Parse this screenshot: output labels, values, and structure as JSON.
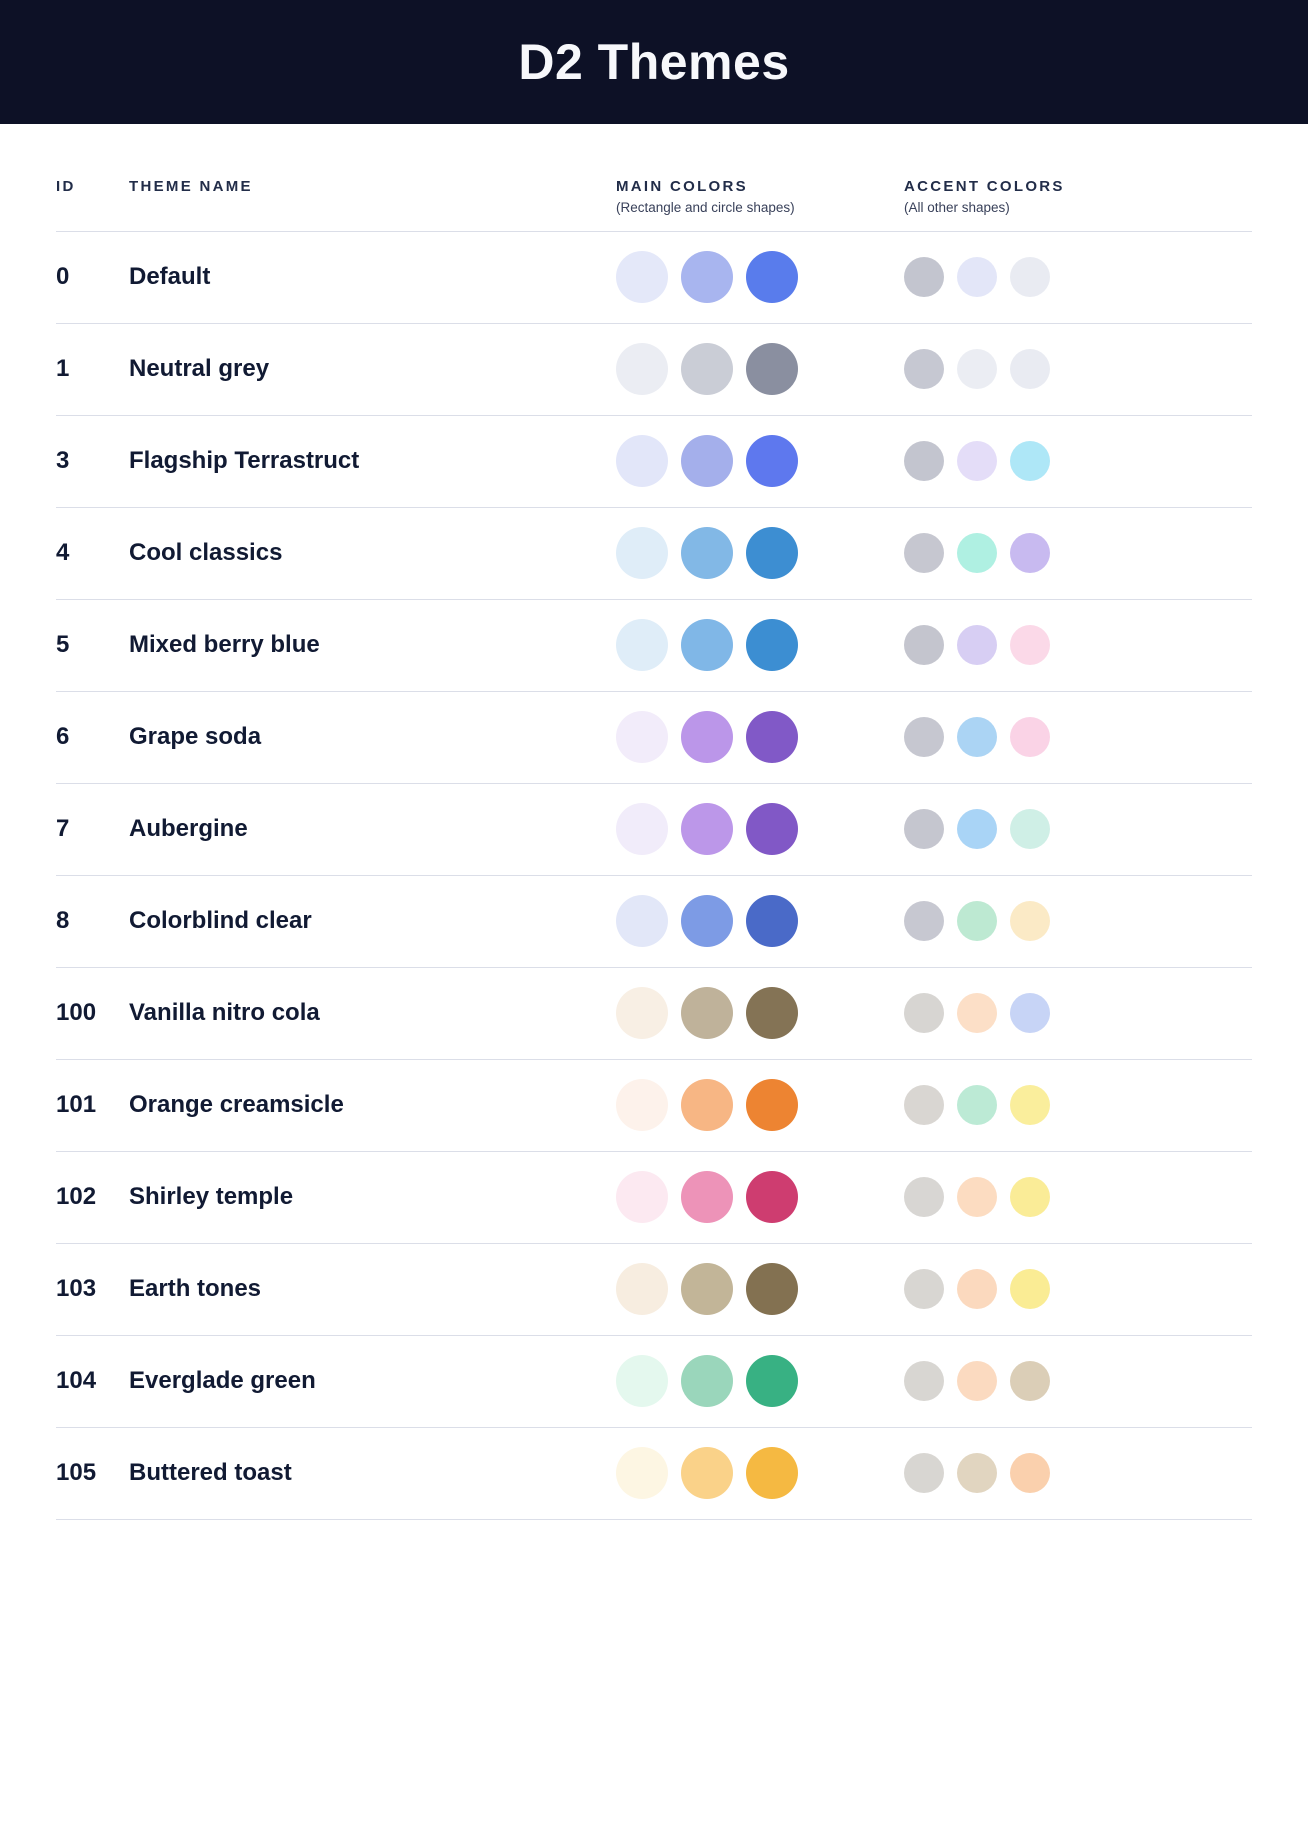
{
  "header": {
    "title": "D2 Themes"
  },
  "table": {
    "columns": {
      "id": "ID",
      "theme_name": "THEME NAME",
      "main_colors": "MAIN COLORS",
      "main_colors_subtitle": "(Rectangle and circle shapes)",
      "accent_colors": "ACCENT COLORS",
      "accent_colors_subtitle": "(All other shapes)"
    },
    "rows": [
      {
        "id": "0",
        "name": "Default",
        "main_colors": [
          "#E4E8F9",
          "#A8B5EF",
          "#597CEC"
        ],
        "accent_colors": [
          "#C3C5CF",
          "#E3E6F8",
          "#E9EBF2"
        ]
      },
      {
        "id": "1",
        "name": "Neutral grey",
        "main_colors": [
          "#EBEDF3",
          "#CACDD6",
          "#8A8FA0"
        ],
        "accent_colors": [
          "#C6C8D2",
          "#EBEDF3",
          "#E9EBF2"
        ]
      },
      {
        "id": "3",
        "name": "Flagship Terrastruct",
        "main_colors": [
          "#E2E6F9",
          "#A4AFEB",
          "#5E78EE"
        ],
        "accent_colors": [
          "#C3C5CF",
          "#E4DDF8",
          "#AEE7F7"
        ]
      },
      {
        "id": "4",
        "name": "Cool classics",
        "main_colors": [
          "#DFEDF8",
          "#82B8E6",
          "#3D8ED2"
        ],
        "accent_colors": [
          "#C6C7D0",
          "#AFF0E2",
          "#C8BAF0"
        ]
      },
      {
        "id": "5",
        "name": "Mixed berry blue",
        "main_colors": [
          "#DFEDF8",
          "#80B7E7",
          "#3C8ED2"
        ],
        "accent_colors": [
          "#C4C5CE",
          "#D7CEF3",
          "#FBD9E8"
        ]
      },
      {
        "id": "6",
        "name": "Grape soda",
        "main_colors": [
          "#F2ECFA",
          "#BB96E9",
          "#8159C7"
        ],
        "accent_colors": [
          "#C6C7D0",
          "#ABD4F4",
          "#FAD3E6"
        ]
      },
      {
        "id": "7",
        "name": "Aubergine",
        "main_colors": [
          "#F1ECFA",
          "#BC97E9",
          "#8158C6"
        ],
        "accent_colors": [
          "#C5C6CF",
          "#A9D4F6",
          "#CFEFE6"
        ]
      },
      {
        "id": "8",
        "name": "Colorblind clear",
        "main_colors": [
          "#E2E7F8",
          "#7D9BE5",
          "#4A6AC8"
        ],
        "accent_colors": [
          "#C7C8D1",
          "#BDE9D2",
          "#FBEAC6"
        ]
      },
      {
        "id": "100",
        "name": "Vanilla nitro cola",
        "main_colors": [
          "#F8EFE4",
          "#BFB29A",
          "#847355"
        ],
        "accent_colors": [
          "#D7D5D2",
          "#FCDFC7",
          "#C7D4F6"
        ]
      },
      {
        "id": "101",
        "name": "Orange creamsicle",
        "main_colors": [
          "#FDF2EB",
          "#F7B684",
          "#ED8432"
        ],
        "accent_colors": [
          "#D9D6D2",
          "#BCEAD5",
          "#FAEE9C"
        ]
      },
      {
        "id": "102",
        "name": "Shirley temple",
        "main_colors": [
          "#FCE9F1",
          "#ED93B8",
          "#CE3D70"
        ],
        "accent_colors": [
          "#D8D6D3",
          "#FCDCC1",
          "#FAEC97"
        ]
      },
      {
        "id": "103",
        "name": "Earth tones",
        "main_colors": [
          "#F7EDE0",
          "#C2B598",
          "#837151"
        ],
        "accent_colors": [
          "#D8D6D2",
          "#FBD9BE",
          "#FAEC94"
        ]
      },
      {
        "id": "104",
        "name": "Everglade green",
        "main_colors": [
          "#E4F8EE",
          "#9AD6BB",
          "#38B183"
        ],
        "accent_colors": [
          "#D8D6D2",
          "#FBDAC0",
          "#DBCEB7"
        ]
      },
      {
        "id": "105",
        "name": "Buttered toast",
        "main_colors": [
          "#FDF6E3",
          "#FAD289",
          "#F5B942"
        ],
        "accent_colors": [
          "#D8D6D2",
          "#E1D5C0",
          "#FAD0AD"
        ]
      }
    ]
  },
  "colors": {
    "header_bg": "#0D1126",
    "divider": "#DBDEE8",
    "text": "#111A33"
  }
}
